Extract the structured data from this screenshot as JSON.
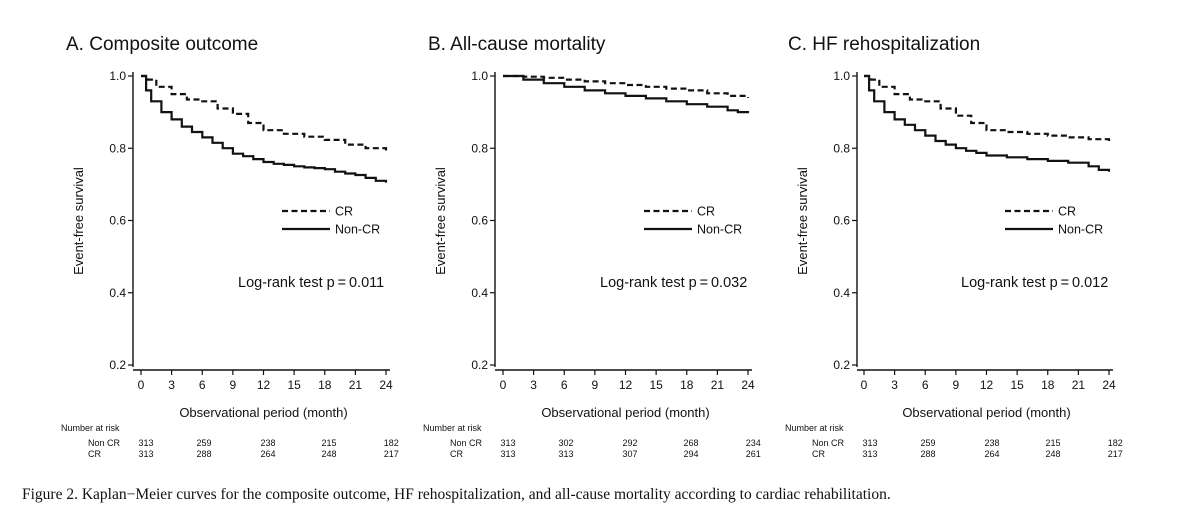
{
  "chart_data": [
    {
      "type": "line",
      "title": "A. Composite outcome",
      "xlabel": "Observational period (month)",
      "ylabel": "Event-free survival",
      "xlim": [
        0,
        24
      ],
      "ylim": [
        0.2,
        1.0
      ],
      "xticks": [
        "0",
        "3",
        "6",
        "9",
        "12",
        "15",
        "18",
        "21",
        "24"
      ],
      "yticks": [
        "0.2",
        "0.4",
        "0.6",
        "0.8",
        "1.0"
      ],
      "series": [
        {
          "name": "CR",
          "style": "dashed",
          "x": [
            0,
            0.7,
            1.5,
            3,
            4.5,
            6,
            7.5,
            9,
            10.5,
            12,
            14,
            16,
            18,
            20,
            22,
            24
          ],
          "y": [
            1.0,
            0.99,
            0.97,
            0.95,
            0.935,
            0.93,
            0.91,
            0.895,
            0.87,
            0.85,
            0.84,
            0.832,
            0.823,
            0.81,
            0.8,
            0.79
          ]
        },
        {
          "name": "Non-CR",
          "style": "solid",
          "x": [
            0,
            0.5,
            1,
            2,
            3,
            4,
            5,
            6,
            7,
            8,
            9,
            10,
            11,
            12,
            13,
            14,
            15,
            16,
            17,
            18,
            19,
            20,
            21,
            22,
            23,
            24
          ],
          "y": [
            1.0,
            0.96,
            0.93,
            0.9,
            0.88,
            0.86,
            0.845,
            0.83,
            0.815,
            0.8,
            0.785,
            0.778,
            0.77,
            0.762,
            0.757,
            0.754,
            0.75,
            0.747,
            0.745,
            0.742,
            0.735,
            0.73,
            0.726,
            0.718,
            0.71,
            0.705
          ]
        }
      ],
      "legend": [
        "CR",
        "Non-CR"
      ],
      "annotation": "Log-rank test p = 0.011",
      "risk_table": {
        "header": "Number at risk",
        "times": [
          0,
          6,
          12,
          18,
          24
        ],
        "rows": [
          {
            "label": "Non CR",
            "values": [
              "313",
              "259",
              "238",
              "215",
              "182"
            ]
          },
          {
            "label": "CR",
            "values": [
              "313",
              "288",
              "264",
              "248",
              "217"
            ]
          }
        ]
      }
    },
    {
      "type": "line",
      "title": "B. All-cause mortality",
      "xlabel": "Observational period (month)",
      "ylabel": "Event-free survival",
      "xlim": [
        0,
        24
      ],
      "ylim": [
        0.2,
        1.0
      ],
      "xticks": [
        "0",
        "3",
        "6",
        "9",
        "12",
        "15",
        "18",
        "21",
        "24"
      ],
      "yticks": [
        "0.2",
        "0.4",
        "0.6",
        "0.8",
        "1.0"
      ],
      "series": [
        {
          "name": "CR",
          "style": "dashed",
          "x": [
            0,
            2,
            4,
            6,
            8,
            10,
            12,
            14,
            16,
            18,
            20,
            22,
            24
          ],
          "y": [
            1.0,
            0.998,
            0.995,
            0.99,
            0.985,
            0.98,
            0.975,
            0.97,
            0.965,
            0.96,
            0.952,
            0.945,
            0.94
          ]
        },
        {
          "name": "Non-CR",
          "style": "solid",
          "x": [
            0,
            2,
            4,
            6,
            8,
            10,
            12,
            14,
            16,
            18,
            20,
            22,
            23,
            24
          ],
          "y": [
            1.0,
            0.99,
            0.98,
            0.97,
            0.96,
            0.952,
            0.945,
            0.938,
            0.93,
            0.922,
            0.915,
            0.905,
            0.9,
            0.897
          ]
        }
      ],
      "legend": [
        "CR",
        "Non-CR"
      ],
      "annotation": "Log-rank test p = 0.032",
      "risk_table": {
        "header": "Number at risk",
        "times": [
          0,
          6,
          12,
          18,
          24
        ],
        "rows": [
          {
            "label": "Non CR",
            "values": [
              "313",
              "302",
              "292",
              "268",
              "234"
            ]
          },
          {
            "label": "CR",
            "values": [
              "313",
              "313",
              "307",
              "294",
              "261"
            ]
          }
        ]
      }
    },
    {
      "type": "line",
      "title": "C. HF rehospitalization",
      "xlabel": "Observational period (month)",
      "ylabel": "Event-free survival",
      "xlim": [
        0,
        24
      ],
      "ylim": [
        0.2,
        1.0
      ],
      "xticks": [
        "0",
        "3",
        "6",
        "9",
        "12",
        "15",
        "18",
        "21",
        "24"
      ],
      "yticks": [
        "0.2",
        "0.4",
        "0.6",
        "0.8",
        "1.0"
      ],
      "series": [
        {
          "name": "CR",
          "style": "dashed",
          "x": [
            0,
            0.7,
            1.5,
            3,
            4.5,
            6,
            7.5,
            9,
            10.5,
            12,
            14,
            16,
            18,
            20,
            22,
            24
          ],
          "y": [
            1.0,
            0.99,
            0.97,
            0.95,
            0.935,
            0.93,
            0.91,
            0.89,
            0.87,
            0.85,
            0.845,
            0.84,
            0.835,
            0.83,
            0.825,
            0.82
          ]
        },
        {
          "name": "Non-CR",
          "style": "solid",
          "x": [
            0,
            0.5,
            1,
            2,
            3,
            4,
            5,
            6,
            7,
            8,
            9,
            10,
            11,
            12,
            14,
            16,
            18,
            20,
            22,
            23,
            24
          ],
          "y": [
            1.0,
            0.96,
            0.93,
            0.9,
            0.88,
            0.865,
            0.85,
            0.835,
            0.82,
            0.81,
            0.8,
            0.793,
            0.787,
            0.78,
            0.775,
            0.77,
            0.765,
            0.76,
            0.75,
            0.74,
            0.735
          ]
        }
      ],
      "legend": [
        "CR",
        "Non-CR"
      ],
      "annotation": "Log-rank test p = 0.012",
      "risk_table": {
        "header": "Number at risk",
        "times": [
          0,
          6,
          12,
          18,
          24
        ],
        "rows": [
          {
            "label": "Non CR",
            "values": [
              "313",
              "259",
              "238",
              "215",
              "182"
            ]
          },
          {
            "label": "CR",
            "values": [
              "313",
              "288",
              "264",
              "248",
              "217"
            ]
          }
        ]
      }
    }
  ],
  "caption": "Figure 2.  Kaplan−Meier curves for the composite outcome, HF rehospitalization, and all-cause mortality according to cardiac rehabilitation."
}
